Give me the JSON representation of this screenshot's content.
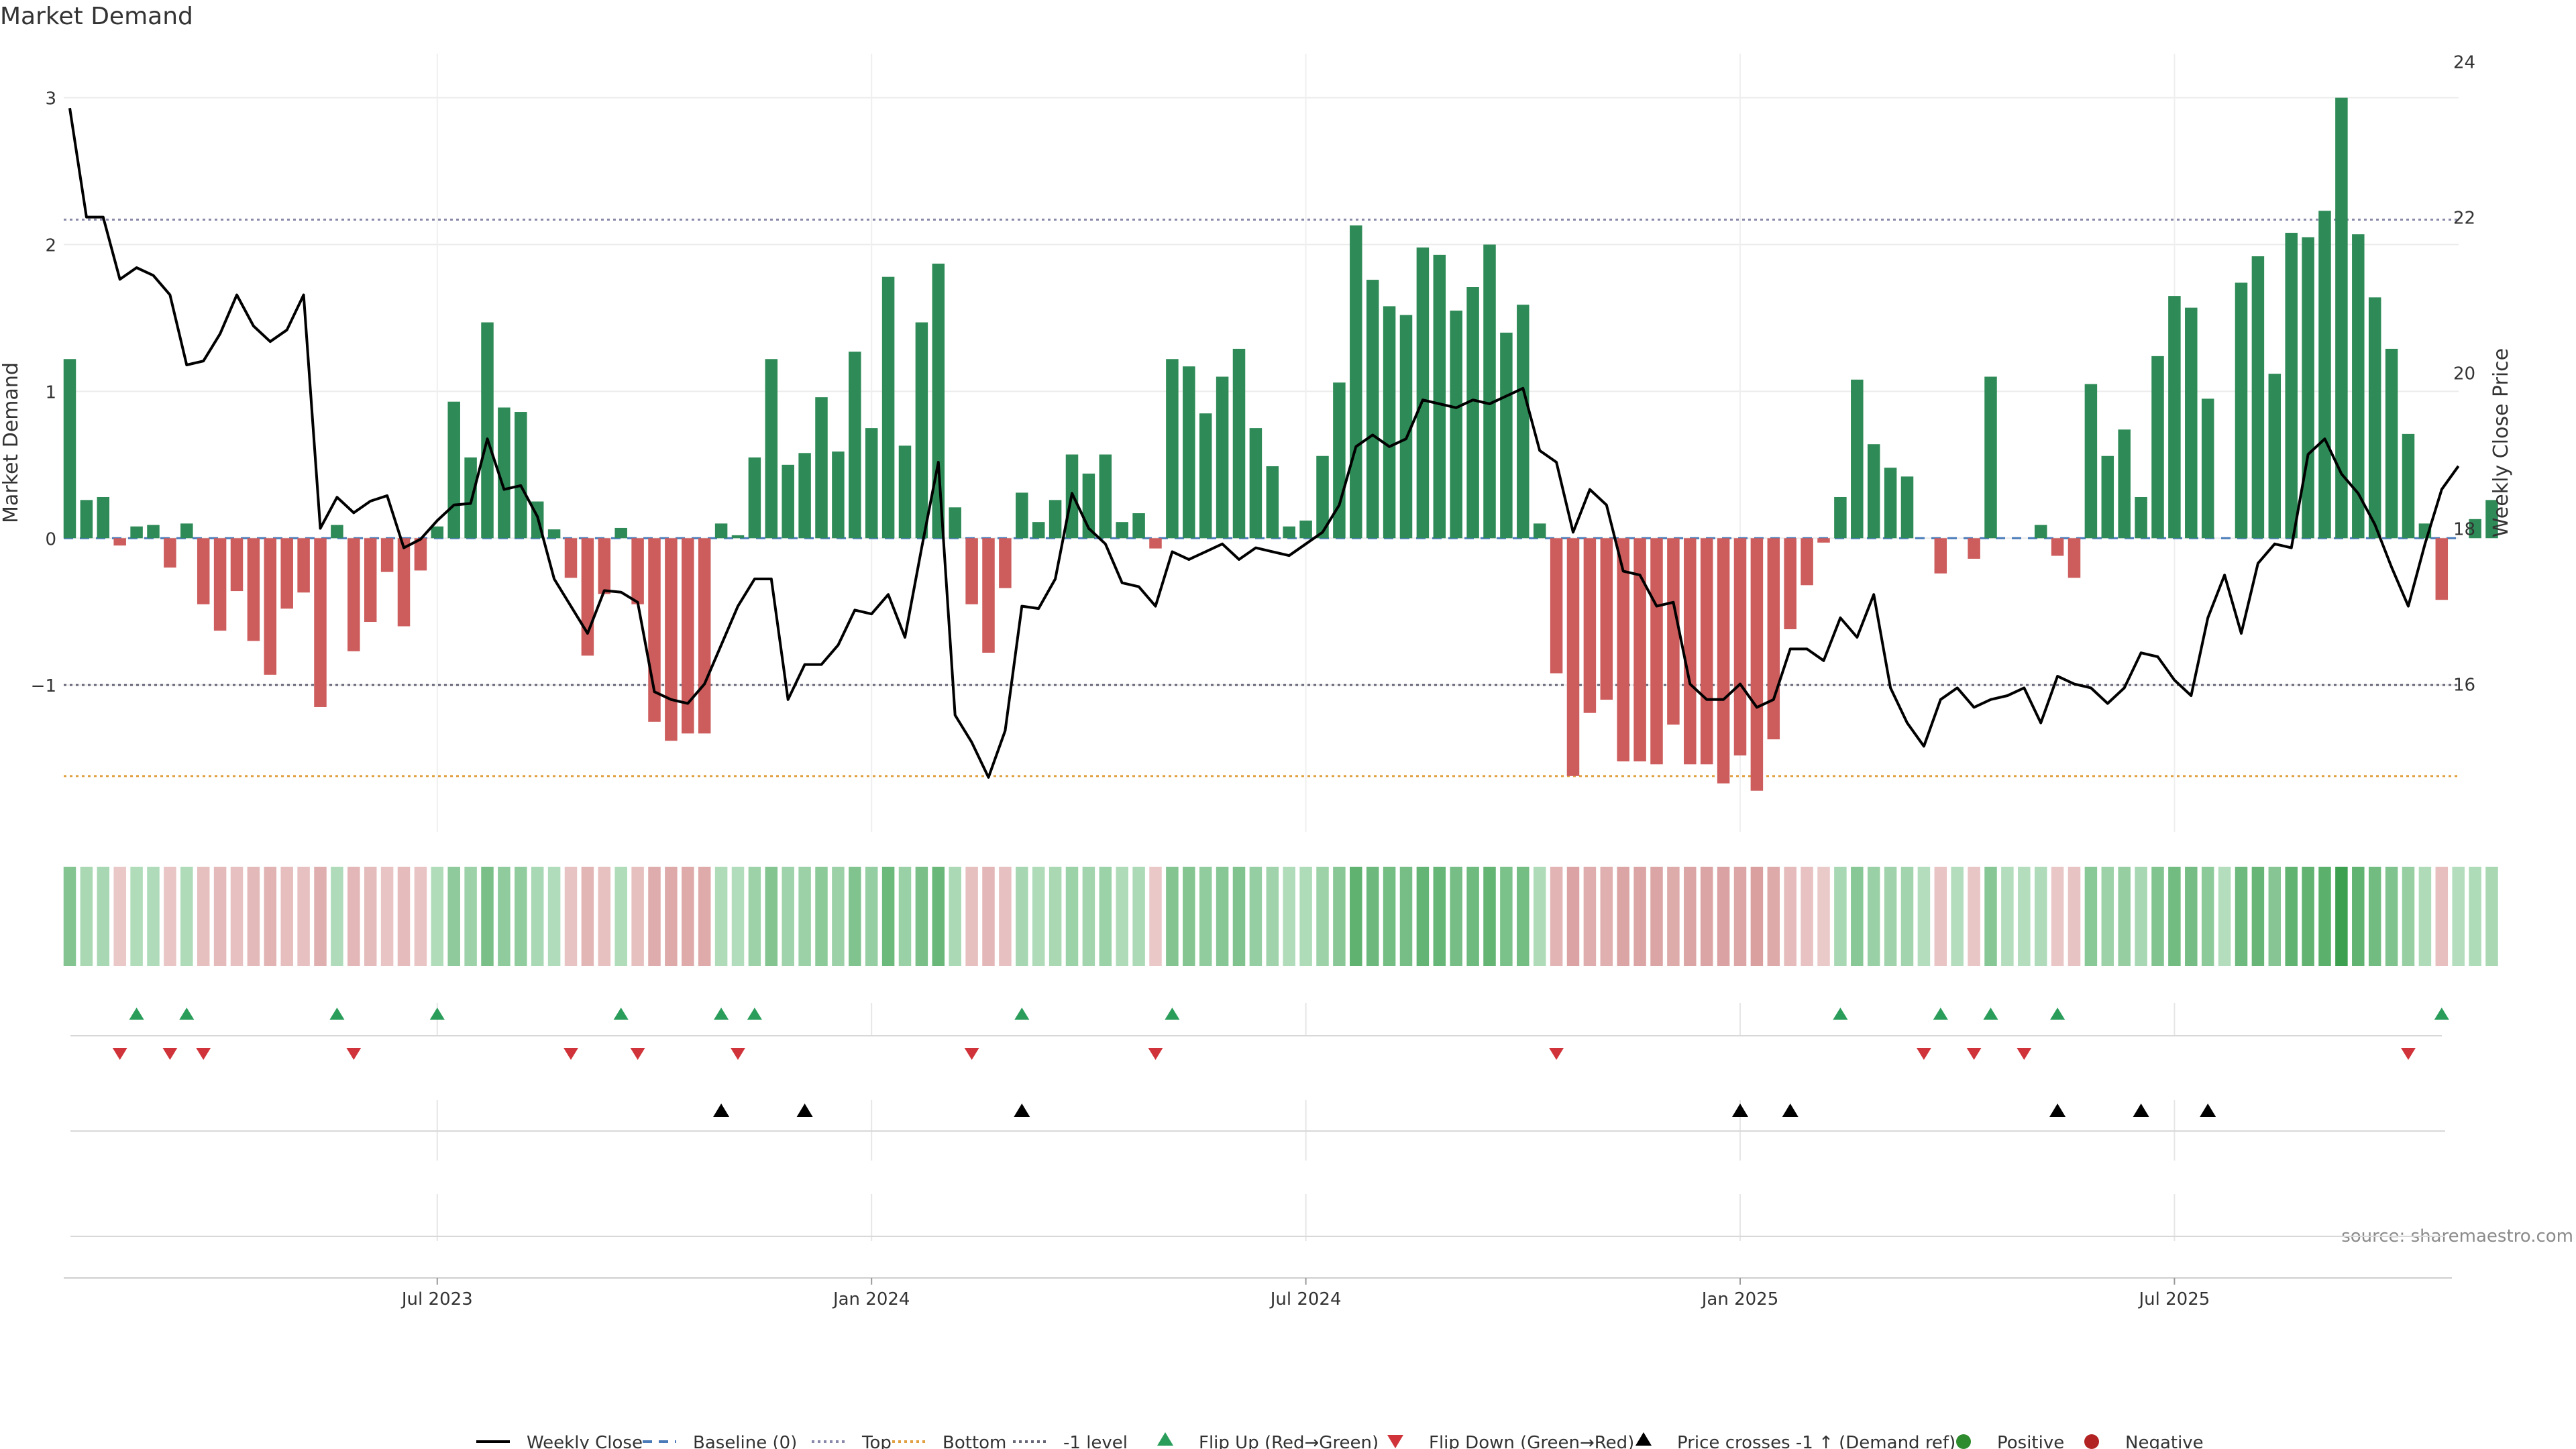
{
  "chart_data": {
    "type": "bar",
    "title": "Market Demand",
    "ylabel_left": "Market Demand",
    "ylabel_right": "Weekly Close Price",
    "source": "source: sharemaestro.com",
    "left_ylim": [
      -2,
      3.3
    ],
    "right_ylim": [
      14.1,
      24.1
    ],
    "left_ticks": [
      {
        "v": 3,
        "label": "3"
      },
      {
        "v": 2,
        "label": "2"
      },
      {
        "v": 1,
        "label": "1"
      },
      {
        "v": 0,
        "label": "0"
      },
      {
        "v": -1,
        "label": "−1"
      }
    ],
    "right_ticks": [
      {
        "v": 24,
        "label": "24"
      },
      {
        "v": 22,
        "label": "22"
      },
      {
        "v": 20,
        "label": "20"
      },
      {
        "v": 18,
        "label": "18"
      },
      {
        "v": 16,
        "label": "16"
      }
    ],
    "x_ticks": [
      {
        "week": 22,
        "label": "Jul 2023"
      },
      {
        "week": 48,
        "label": "Jan 2024"
      },
      {
        "week": 74,
        "label": "Jul 2024"
      },
      {
        "week": 100,
        "label": "Jan 2025"
      },
      {
        "week": 126,
        "label": "Jul 2025"
      }
    ],
    "n_weeks": 144,
    "reference_lines": {
      "top": 2.17,
      "bottom": -1.62,
      "minus_one": -1.0
    },
    "demand": [
      1.22,
      0.26,
      0.28,
      -0.05,
      0.08,
      0.09,
      -0.2,
      0.1,
      -0.45,
      -0.63,
      -0.36,
      -0.7,
      -0.93,
      -0.48,
      -0.37,
      -1.15,
      0.09,
      -0.77,
      -0.57,
      -0.23,
      -0.6,
      -0.22,
      0.08,
      0.93,
      0.55,
      1.47,
      0.89,
      0.86,
      0.25,
      0.06,
      -0.27,
      -0.8,
      -0.38,
      0.07,
      -0.45,
      -1.25,
      -1.38,
      -1.33,
      -1.33,
      0.1,
      0.02,
      0.55,
      1.22,
      0.5,
      0.58,
      0.96,
      0.59,
      1.27,
      0.75,
      1.78,
      0.63,
      1.47,
      1.87,
      0.21,
      -0.45,
      -0.78,
      -0.34,
      0.31,
      0.11,
      0.26,
      0.57,
      0.44,
      0.57,
      0.11,
      0.17,
      -0.07,
      1.22,
      1.17,
      0.85,
      1.1,
      1.29,
      0.75,
      0.49,
      0.08,
      0.12,
      0.56,
      1.06,
      2.13,
      1.76,
      1.58,
      1.52,
      1.98,
      1.93,
      1.55,
      1.71,
      2.0,
      1.4,
      1.59,
      0.1,
      -0.92,
      -1.62,
      -1.19,
      -1.1,
      -1.52,
      -1.52,
      -1.54,
      -1.27,
      -1.54,
      -1.54,
      -1.67,
      -1.48,
      -1.72,
      -1.37,
      -0.62,
      -0.32,
      -0.03,
      0.28,
      1.08,
      0.64,
      0.48,
      0.42,
      0.0,
      -0.24,
      0.0,
      -0.14,
      1.1,
      0.0,
      0.0,
      0.09,
      -0.12,
      -0.27,
      1.05,
      0.56,
      0.74,
      0.28,
      1.24,
      1.65,
      1.57,
      0.95,
      0.0,
      1.74,
      1.92,
      1.12,
      2.08,
      2.05,
      2.23,
      3.0,
      2.07,
      1.64,
      1.29,
      0.71,
      0.1,
      -0.42,
      0.0,
      0.13,
      0.26
    ],
    "weekly_close": [
      23.4,
      22.0,
      22.0,
      21.2,
      21.35,
      21.25,
      21.0,
      20.1,
      20.15,
      20.5,
      21.0,
      20.6,
      20.4,
      20.55,
      21.0,
      18.0,
      18.4,
      18.2,
      18.35,
      18.42,
      17.75,
      17.86,
      18.1,
      18.3,
      18.32,
      19.15,
      18.5,
      18.55,
      18.15,
      17.35,
      17.0,
      16.65,
      17.2,
      17.18,
      17.05,
      15.9,
      15.8,
      15.75,
      16.0,
      16.5,
      17.0,
      17.35,
      17.35,
      15.8,
      16.25,
      16.25,
      16.5,
      16.95,
      16.9,
      17.15,
      16.6,
      17.75,
      18.85,
      15.6,
      15.25,
      14.8,
      15.4,
      17.0,
      16.97,
      17.35,
      18.45,
      18.0,
      17.8,
      17.3,
      17.25,
      17.0,
      17.7,
      17.6,
      17.7,
      17.8,
      17.6,
      17.75,
      17.7,
      17.65,
      17.8,
      17.95,
      18.3,
      19.05,
      19.2,
      19.05,
      19.15,
      19.65,
      19.6,
      19.55,
      19.65,
      19.6,
      19.7,
      19.8,
      19.0,
      18.85,
      17.95,
      18.5,
      18.3,
      17.45,
      17.4,
      17.0,
      17.05,
      16.0,
      15.8,
      15.8,
      16.0,
      15.7,
      15.8,
      16.45,
      16.45,
      16.3,
      16.85,
      16.6,
      17.15,
      15.95,
      15.5,
      15.2,
      15.8,
      15.95,
      15.7,
      15.8,
      15.85,
      15.95,
      15.5,
      16.1,
      16.0,
      15.95,
      15.75,
      15.95,
      16.4,
      16.35,
      16.05,
      15.85,
      16.85,
      17.4,
      16.65,
      17.55,
      17.8,
      17.75,
      18.95,
      19.15,
      18.7,
      18.45,
      18.05,
      17.5,
      17.0,
      17.8,
      18.5,
      18.8
    ],
    "flip_up_weeks": [
      4,
      7,
      16,
      22,
      33,
      39,
      41,
      57,
      66,
      106,
      112,
      115,
      119,
      142
    ],
    "flip_down_weeks": [
      3,
      6,
      8,
      17,
      30,
      34,
      40,
      54,
      65,
      89,
      111,
      114,
      117,
      140
    ],
    "price_cross_weeks": [
      39,
      44,
      57,
      100,
      103,
      119,
      124,
      128
    ],
    "legend": [
      "Weekly Close",
      "Baseline (0)",
      "Top",
      "Bottom",
      "-1 level",
      "Flip Up (Red→Green)",
      "Flip Down (Green→Red)",
      "Price crosses -1 ↑ (Demand ref)",
      "Positive",
      "Negative"
    ],
    "colors": {
      "positive": "#2e8b57",
      "negative": "#cd5c5c",
      "close": "#000000",
      "baseline": "#4a7ab8",
      "top": "#8888aa",
      "bottom": "#e0a040",
      "minus_one": "#666677",
      "flip_up": "#2a9d5a",
      "flip_down": "#d0343a",
      "cross": "#000000",
      "legend_positive": "#2e8b2e",
      "legend_negative": "#b22222"
    }
  }
}
